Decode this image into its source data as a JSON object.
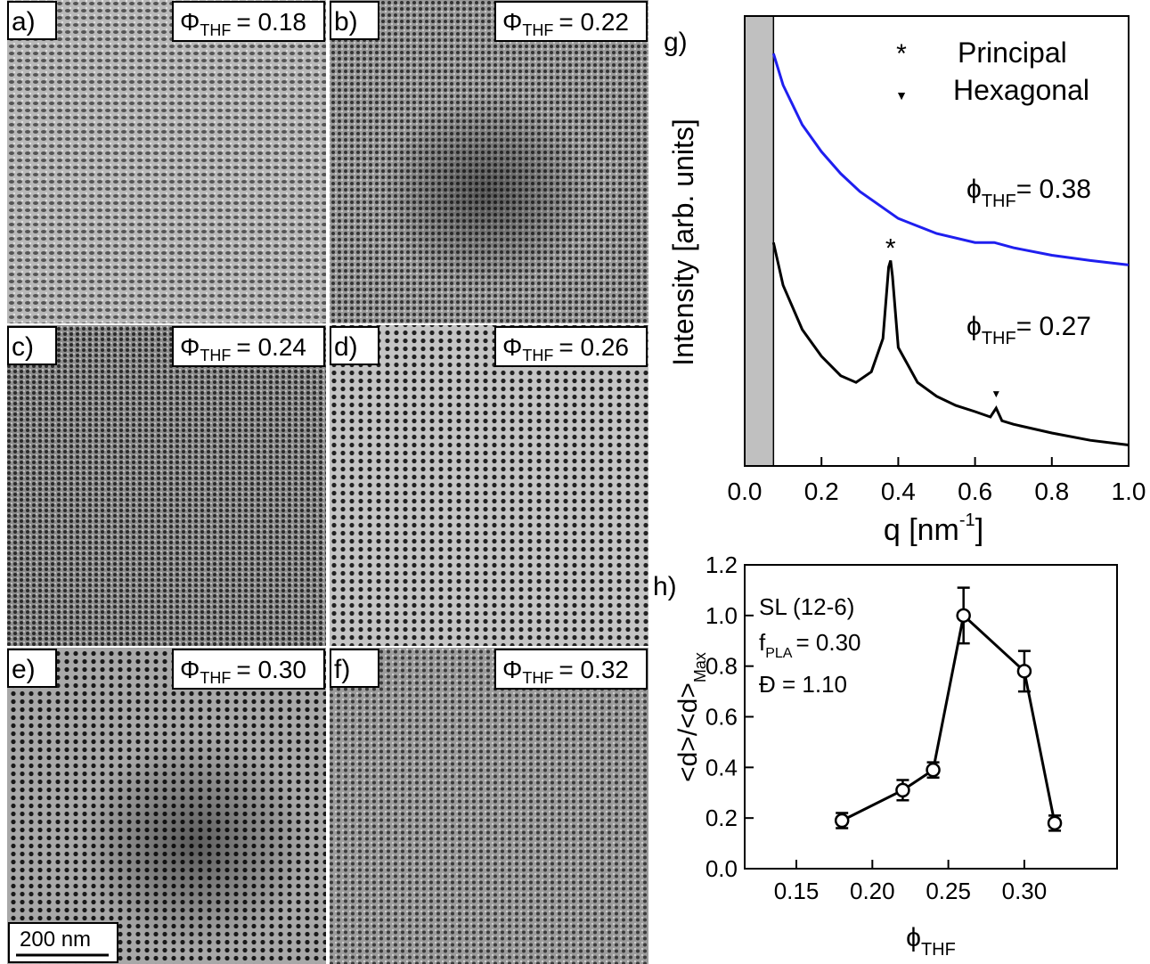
{
  "panels": [
    {
      "letter": "a)",
      "symbol": "Φ",
      "subscript": "THF",
      "value": "= 0.18"
    },
    {
      "letter": "b)",
      "symbol": "Φ",
      "subscript": "THF",
      "value": "= 0.22"
    },
    {
      "letter": "c)",
      "symbol": "Φ",
      "subscript": "THF",
      "value": "= 0.24"
    },
    {
      "letter": "d)",
      "symbol": "Φ",
      "subscript": "THF",
      "value": "= 0.26"
    },
    {
      "letter": "e)",
      "symbol": "Φ",
      "subscript": "THF",
      "value": "= 0.30"
    },
    {
      "letter": "f)",
      "symbol": "Φ",
      "subscript": "THF",
      "value": "= 0.32"
    }
  ],
  "scale_bar": "200 nm",
  "chart_data": [
    {
      "type": "line",
      "label": "g)",
      "x_label": {
        "main": "q [nm",
        "superscript": "-1",
        "end": "]"
      },
      "y_label": "Intensity [arb. units]",
      "log_y": true,
      "xlim": [
        0,
        1
      ],
      "xticks": [
        {
          "value": 0,
          "label": "0.0"
        },
        0.2,
        0.4,
        0.6,
        0.8,
        {
          "value": 1,
          "label": "1.0"
        }
      ],
      "ylim": [
        1,
        1000000
      ],
      "excluded_region": [
        0,
        0.075
      ],
      "series": [
        {
          "name": "= 0.38",
          "symbol": "ϕ",
          "subscript": "THF",
          "color": "#1f1fef",
          "x": [
            0.075,
            0.1,
            0.15,
            0.2,
            0.25,
            0.3,
            0.4,
            0.5,
            0.6,
            0.65,
            0.7,
            0.8,
            0.9,
            1.0
          ],
          "values": [
            316000,
            120000,
            35500,
            15500,
            7900,
            4570,
            2000,
            1260,
            955,
            955,
            813,
            646,
            550,
            479
          ]
        },
        {
          "name": "= 0.27",
          "symbol": "ϕ",
          "subscript": "THF",
          "color": "#000000",
          "x": [
            0.075,
            0.1,
            0.15,
            0.2,
            0.25,
            0.29,
            0.33,
            0.36,
            0.375,
            0.38,
            0.385,
            0.4,
            0.45,
            0.5,
            0.55,
            0.6,
            0.64,
            0.655,
            0.67,
            0.7,
            0.8,
            0.9,
            1.0
          ],
          "values": [
            955,
            257,
            66,
            29,
            16,
            13,
            18,
            50,
            447,
            550,
            339,
            38,
            13,
            8.5,
            6.4,
            5.3,
            4.5,
            5.9,
            4.0,
            3.6,
            2.75,
            2.2,
            1.9
          ]
        }
      ],
      "markers": [
        {
          "symbol": "*",
          "name": "Principal",
          "x": 0.38
        },
        {
          "symbol": "▼",
          "name": "Hexagonal",
          "x": 0.655
        }
      ]
    },
    {
      "type": "line",
      "label": "h)",
      "x_label": {
        "symbol": "ϕ",
        "subscript": "THF"
      },
      "y_label": {
        "main": "<d>/<d>",
        "subscript": "Max"
      },
      "xlim": [
        0.116,
        0.361
      ],
      "xticks": [
        0.15,
        {
          "value": 0.2,
          "label": "0.20"
        },
        0.25,
        {
          "value": 0.3,
          "label": "0.30"
        }
      ],
      "ylim": [
        0,
        1.2
      ],
      "yticks": [
        {
          "value": 0,
          "label": "0.0"
        },
        0.2,
        0.4,
        0.6,
        0.8,
        {
          "value": 1,
          "label": "1.0"
        },
        1.2
      ],
      "color": "#000000",
      "x": [
        0.18,
        0.22,
        0.24,
        0.26,
        0.3,
        0.32
      ],
      "values": [
        0.19,
        0.31,
        0.39,
        1.0,
        0.78,
        0.18
      ],
      "errors": [
        0.03,
        0.04,
        0.03,
        0.11,
        0.08,
        0.03
      ],
      "annotations": {
        "line1": "SL (12-6)",
        "f": "f",
        "f_subscript": "PLA",
        "f_value": "= 0.30",
        "line3": "Đ = 1.10"
      }
    }
  ]
}
